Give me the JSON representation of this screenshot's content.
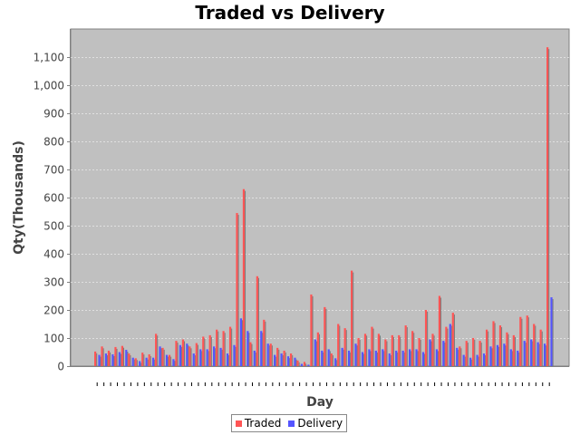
{
  "chart_data": {
    "type": "bar",
    "title": "Traded vs Delivery",
    "xlabel": "Day",
    "ylabel": "Qty(Thousands)",
    "ylim": [
      0,
      1200
    ],
    "yticks": [
      0,
      100,
      200,
      300,
      400,
      500,
      600,
      700,
      800,
      900,
      1000,
      1100
    ],
    "ytick_labels": [
      "0",
      "100",
      "200",
      "300",
      "400",
      "500",
      "600",
      "700",
      "800",
      "900",
      "1,000",
      "1,100"
    ],
    "grid": true,
    "legend_position": "bottom-center",
    "colors": {
      "Traded": "#ff5555",
      "Delivery": "#5555ff",
      "plot_bg": "#c0c0c0",
      "grid": "#ffffff"
    },
    "series": [
      {
        "name": "Traded",
        "values": [
          52,
          70,
          55,
          68,
          72,
          45,
          28,
          48,
          42,
          115,
          65,
          40,
          90,
          95,
          70,
          82,
          105,
          110,
          130,
          125,
          140,
          545,
          630,
          85,
          320,
          165,
          80,
          65,
          55,
          45,
          20,
          15,
          255,
          120,
          210,
          45,
          150,
          135,
          340,
          100,
          115,
          140,
          115,
          95,
          110,
          110,
          145,
          125,
          100,
          200,
          115,
          250,
          140,
          190,
          70,
          90,
          100,
          90,
          130,
          160,
          145,
          120,
          110,
          175,
          180,
          150,
          130,
          1135
        ],
        "labels": [
          "",
          "",
          "",
          "",
          "",
          "",
          "",
          "",
          "",
          "",
          "",
          "",
          "",
          "",
          "",
          "",
          "",
          "",
          "",
          "",
          "",
          "",
          "",
          "",
          "",
          "",
          "",
          "",
          "",
          "",
          "",
          "",
          "",
          "",
          "",
          "",
          "",
          "",
          "",
          "",
          "",
          "",
          "",
          "",
          "",
          "",
          "",
          "",
          "",
          "",
          "",
          "",
          "",
          "",
          "",
          "",
          "",
          "",
          "",
          "",
          "",
          "",
          "",
          "",
          "",
          "",
          "",
          ""
        ]
      },
      {
        "name": "Delivery",
        "values": [
          40,
          45,
          42,
          50,
          58,
          30,
          18,
          30,
          30,
          70,
          40,
          25,
          75,
          80,
          45,
          60,
          60,
          70,
          65,
          45,
          75,
          170,
          125,
          55,
          125,
          80,
          40,
          45,
          35,
          30,
          8,
          5,
          95,
          55,
          60,
          28,
          65,
          55,
          80,
          50,
          60,
          55,
          60,
          45,
          55,
          55,
          60,
          60,
          50,
          95,
          60,
          90,
          150,
          65,
          40,
          30,
          40,
          45,
          70,
          75,
          80,
          60,
          55,
          90,
          95,
          85,
          80,
          245
        ]
      }
    ]
  }
}
